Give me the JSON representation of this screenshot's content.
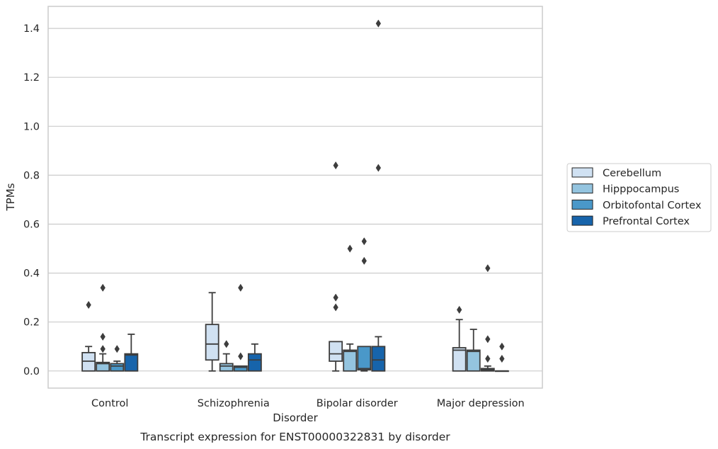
{
  "chart_data": {
    "type": "box",
    "caption": "Transcript expression for ENST00000322831 by disorder",
    "xlabel": "Disorder",
    "ylabel": "TPMs",
    "ylim": [
      -0.07,
      1.49
    ],
    "yticks": [
      0.0,
      0.2,
      0.4,
      0.6,
      0.8,
      1.0,
      1.2,
      1.4
    ],
    "ytick_labels": [
      "0.0",
      "0.2",
      "0.4",
      "0.6",
      "0.8",
      "1.0",
      "1.2",
      "1.4"
    ],
    "grid": true,
    "legend_position": "right",
    "categories": [
      "Control",
      "Schizophrenia",
      "Bipolar disorder",
      "Major depression"
    ],
    "series": [
      {
        "name": "Cerebellum",
        "color": "#d0e1f2",
        "boxes": [
          {
            "min": 0.0,
            "q1": 0.0,
            "median": 0.04,
            "q3": 0.075,
            "max": 0.1,
            "outliers": [
              0.27
            ]
          },
          {
            "min": 0.0,
            "q1": 0.045,
            "median": 0.11,
            "q3": 0.19,
            "max": 0.32,
            "outliers": []
          },
          {
            "min": 0.0,
            "q1": 0.04,
            "median": 0.07,
            "q3": 0.12,
            "max": 0.12,
            "outliers": [
              0.26,
              0.3,
              0.84
            ]
          },
          {
            "min": 0.0,
            "q1": 0.0,
            "median": 0.085,
            "q3": 0.095,
            "max": 0.21,
            "outliers": [
              0.25
            ]
          }
        ]
      },
      {
        "name": "Hipppocampus",
        "color": "#94c4df",
        "boxes": [
          {
            "min": 0.0,
            "q1": 0.0,
            "median": 0.03,
            "q3": 0.035,
            "max": 0.07,
            "outliers": [
              0.09,
              0.14,
              0.34
            ]
          },
          {
            "min": 0.0,
            "q1": 0.0,
            "median": 0.02,
            "q3": 0.03,
            "max": 0.07,
            "outliers": [
              0.11
            ]
          },
          {
            "min": 0.0,
            "q1": 0.0,
            "median": 0.08,
            "q3": 0.085,
            "max": 0.11,
            "outliers": [
              0.5
            ]
          },
          {
            "min": 0.0,
            "q1": 0.0,
            "median": 0.08,
            "q3": 0.085,
            "max": 0.17,
            "outliers": []
          }
        ]
      },
      {
        "name": "Orbitofontal Cortex",
        "color": "#4a98c9",
        "boxes": [
          {
            "min": 0.0,
            "q1": 0.0,
            "median": 0.02,
            "q3": 0.03,
            "max": 0.04,
            "outliers": [
              0.09
            ]
          },
          {
            "min": 0.0,
            "q1": 0.0,
            "median": 0.015,
            "q3": 0.02,
            "max": 0.02,
            "outliers": [
              0.06,
              0.34
            ]
          },
          {
            "min": 0.0,
            "q1": 0.005,
            "median": 0.01,
            "q3": 0.1,
            "max": 0.1,
            "outliers": [
              0.45,
              0.53
            ]
          },
          {
            "min": 0.0,
            "q1": 0.0,
            "median": 0.005,
            "q3": 0.01,
            "max": 0.02,
            "outliers": [
              0.05,
              0.13,
              0.42
            ]
          }
        ]
      },
      {
        "name": "Prefrontal Cortex",
        "color": "#1764ab",
        "boxes": [
          {
            "min": 0.0,
            "q1": 0.0,
            "median": 0.065,
            "q3": 0.07,
            "max": 0.15,
            "outliers": []
          },
          {
            "min": 0.0,
            "q1": 0.0,
            "median": 0.045,
            "q3": 0.07,
            "max": 0.11,
            "outliers": []
          },
          {
            "min": 0.0,
            "q1": 0.0,
            "median": 0.045,
            "q3": 0.1,
            "max": 0.14,
            "outliers": [
              0.83,
              1.42
            ]
          },
          {
            "min": 0.0,
            "q1": 0.0,
            "median": 0.0,
            "q3": 0.0,
            "max": 0.0,
            "outliers": [
              0.05,
              0.1
            ]
          }
        ]
      }
    ]
  }
}
